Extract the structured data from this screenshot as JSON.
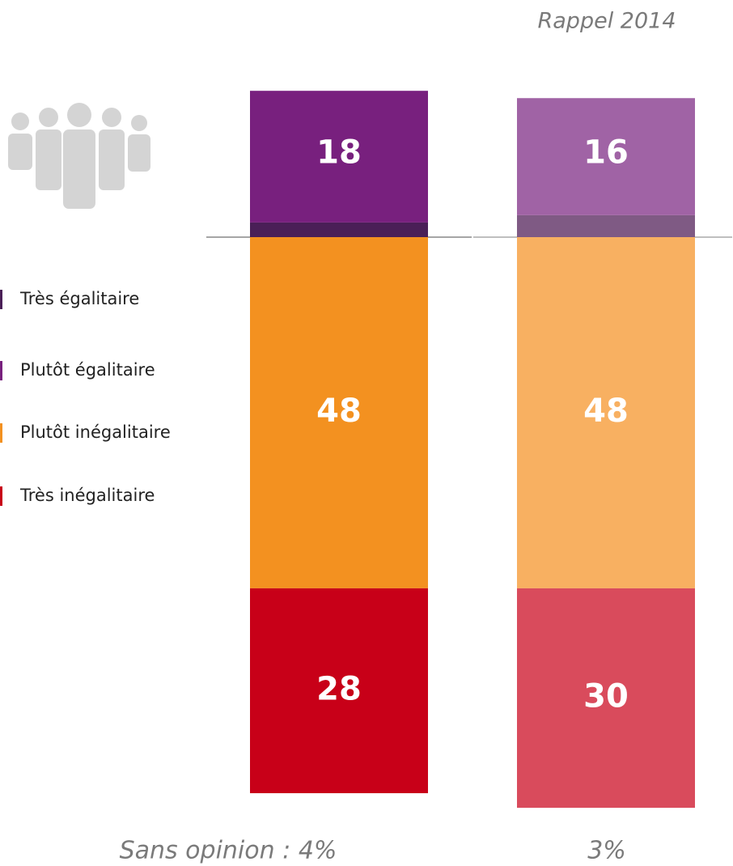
{
  "chart_data": {
    "type": "bar",
    "stacked": true,
    "categories": [
      null,
      "Rappel 2014"
    ],
    "series": [
      {
        "name": "Très égalitaire",
        "colors": [
          "#4a1f57",
          "#7f5a84"
        ],
        "values": [
          2,
          3
        ]
      },
      {
        "name": "Plutôt égalitaire",
        "colors": [
          "#78207e",
          "#a063a5"
        ],
        "values": [
          18,
          16
        ]
      },
      {
        "name": "Plutôt inégalitaire",
        "colors": [
          "#f39120",
          "#f8b061"
        ],
        "values": [
          48,
          48
        ]
      },
      {
        "name": "Très inégalitaire",
        "colors": [
          "#c80018",
          "#d94b5c"
        ],
        "values": [
          28,
          30
        ]
      }
    ],
    "annotations": [
      "Sans opinion : 4%",
      "3%"
    ]
  }
}
